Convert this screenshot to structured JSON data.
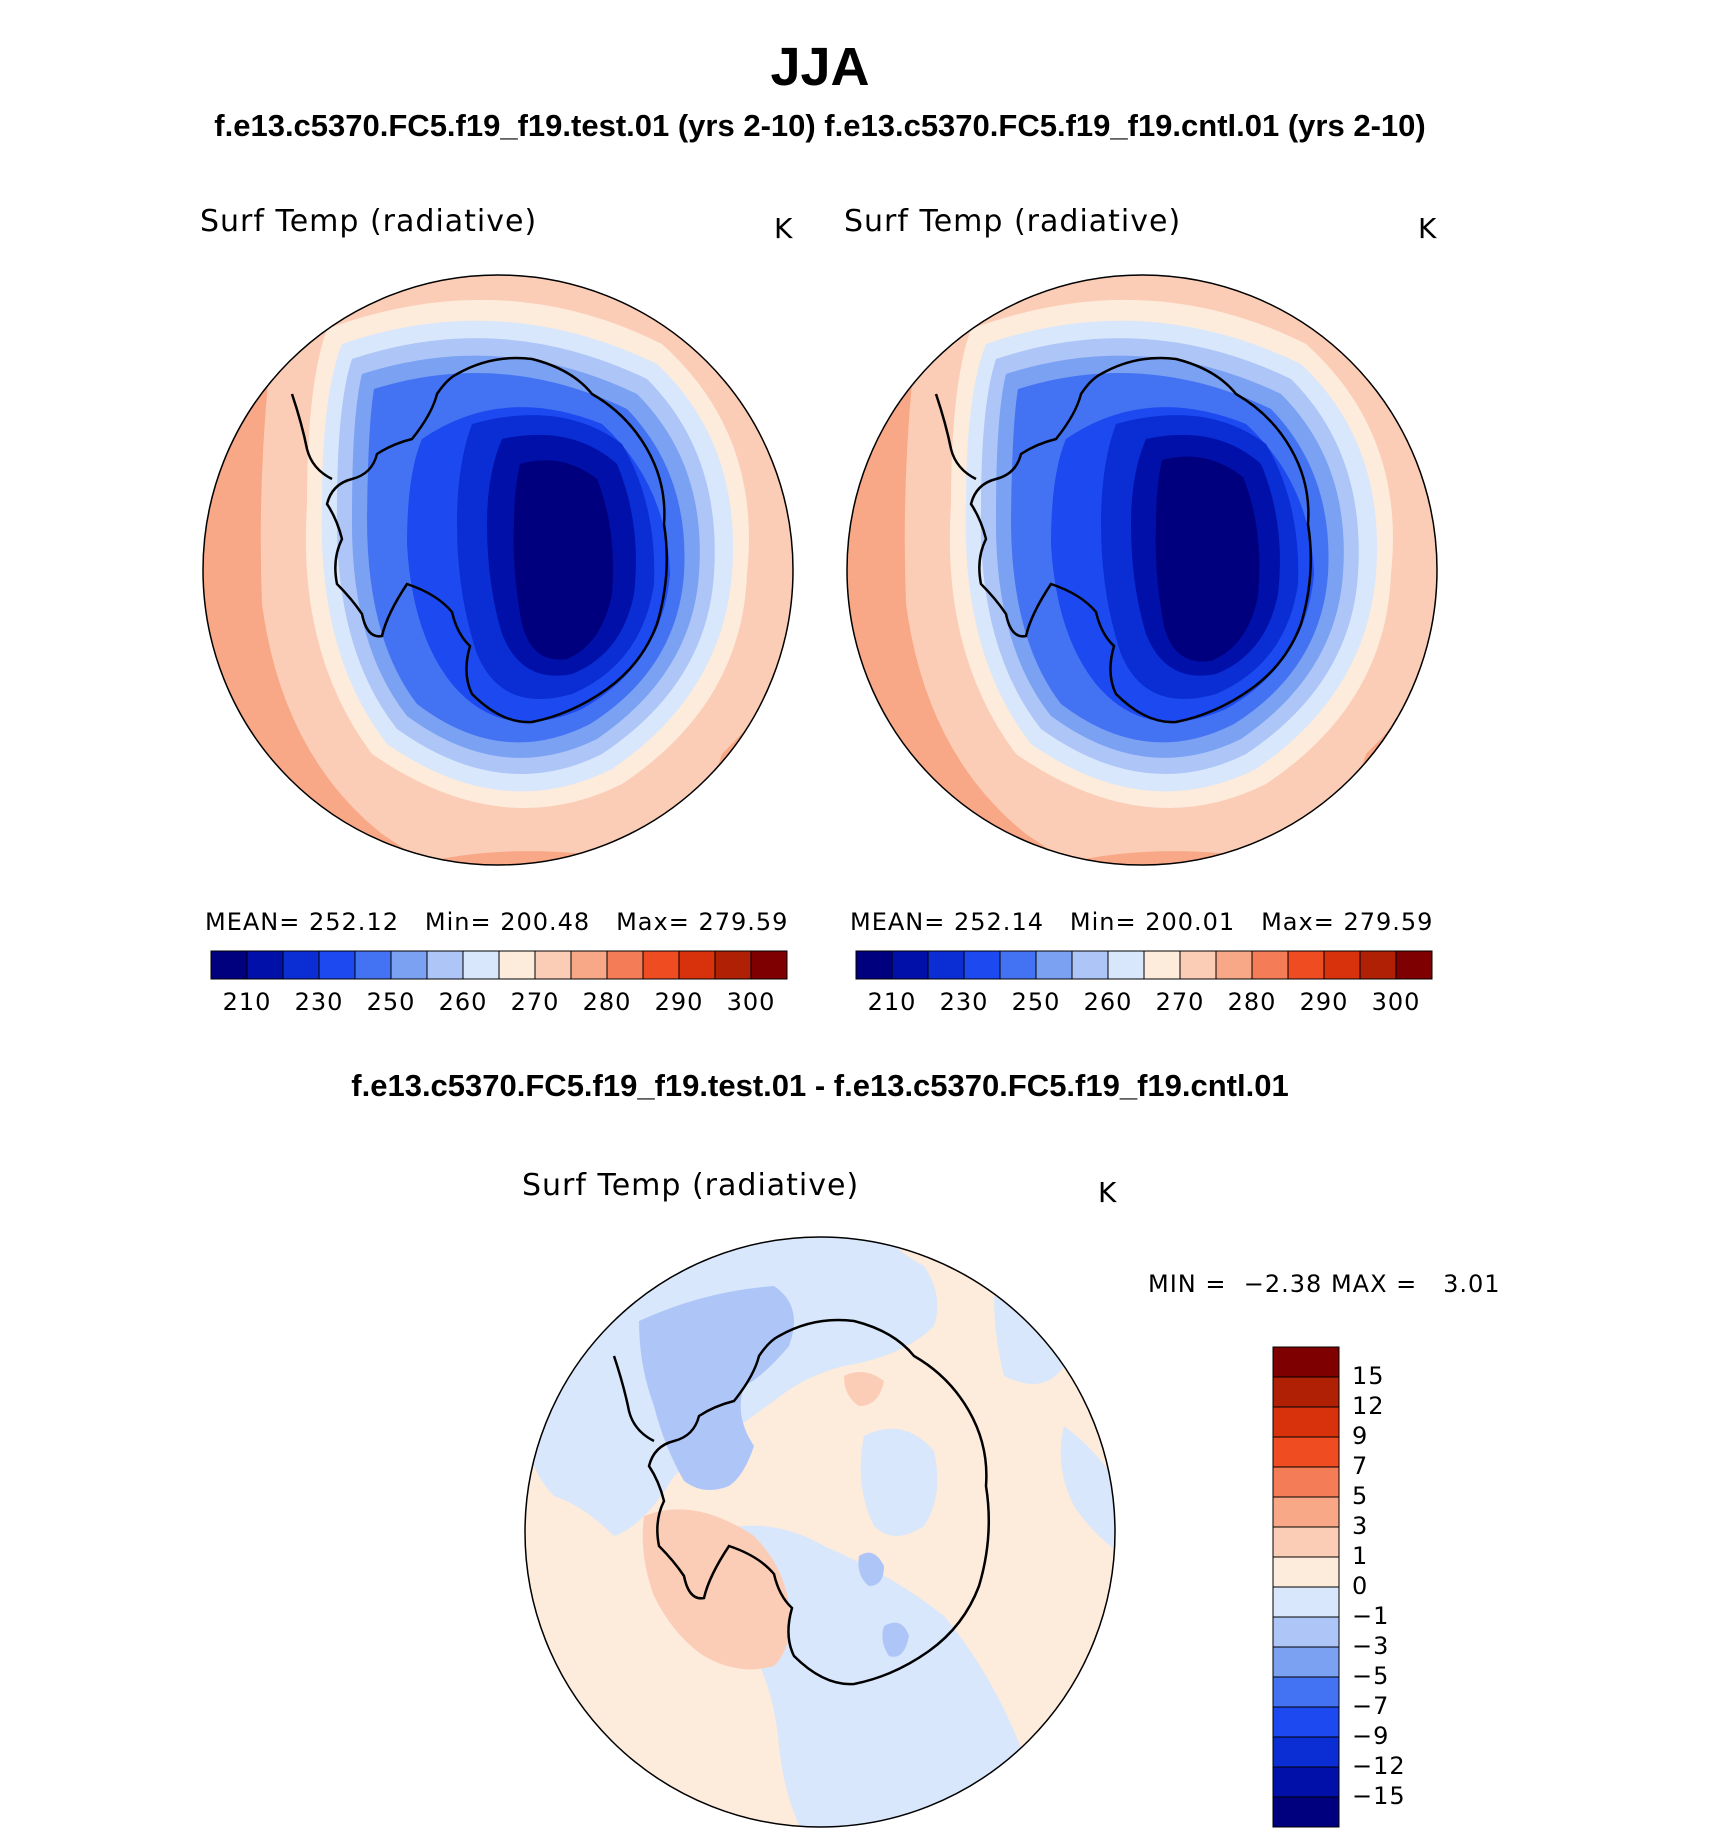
{
  "season": "JJA",
  "subtitle": "f.e13.c5370.FC5.f19_f19.test.01 (yrs 2-10) f.e13.c5370.FC5.f19_f19.cntl.01 (yrs 2-10)",
  "palette_abs": [
    "#00007f",
    "#0010a8",
    "#0a2ed4",
    "#1c49f0",
    "#4373f2",
    "#7ba1f3",
    "#aec6f7",
    "#d8e7fb",
    "#fdebdc",
    "#fbcdb6",
    "#f8a886",
    "#f47c56",
    "#f04c22",
    "#d8320c",
    "#b02005",
    "#7f0000"
  ],
  "panels": [
    {
      "label": "Surf Temp (radiative)",
      "unit": "K",
      "mean_label": "MEAN=",
      "mean": "252.12",
      "min_label": "Min=",
      "min": "200.48",
      "max_label": "Max=",
      "max": "279.59",
      "ticks": [
        "210",
        "230",
        "250",
        "260",
        "270",
        "280",
        "290",
        "300"
      ]
    },
    {
      "label": "Surf Temp (radiative)",
      "unit": "K",
      "mean_label": "MEAN=",
      "mean": "252.14",
      "min_label": "Min=",
      "min": "200.01",
      "max_label": "Max=",
      "max": "279.59",
      "ticks": [
        "210",
        "230",
        "250",
        "260",
        "270",
        "280",
        "290",
        "300"
      ]
    }
  ],
  "diff": {
    "title": "f.e13.c5370.FC5.f19_f19.test.01 - f.e13.c5370.FC5.f19_f19.cntl.01",
    "label": "Surf Temp (radiative)",
    "unit": "K",
    "min_label": "MIN =",
    "min": "−2.38",
    "max_label": "MAX =",
    "max": "3.01",
    "ticks": [
      "15",
      "12",
      "9",
      "7",
      "5",
      "3",
      "1",
      "0",
      "−1",
      "−3",
      "−5",
      "−7",
      "−9",
      "−12",
      "−15"
    ],
    "palette": [
      "#7f0000",
      "#b02005",
      "#d8320c",
      "#f04c22",
      "#f47c56",
      "#f8a886",
      "#fbcdb6",
      "#fdebdc",
      "#d8e7fb",
      "#aec6f7",
      "#7ba1f3",
      "#4373f2",
      "#1c49f0",
      "#0a2ed4",
      "#0010a8",
      "#00007f"
    ]
  }
}
